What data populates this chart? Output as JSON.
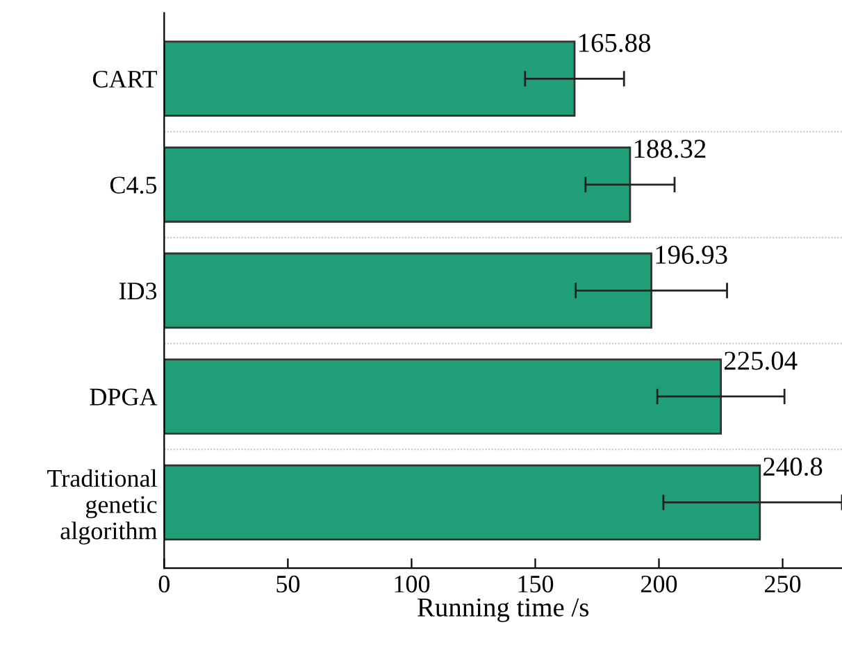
{
  "chart_data": {
    "type": "bar",
    "orientation": "horizontal",
    "xlabel": "Running time /s",
    "categories": [
      "CART",
      "C4.5",
      "ID3",
      "DPGA",
      "Traditional\ngenetic\nalgorithm"
    ],
    "values": [
      165.88,
      188.32,
      196.93,
      225.04,
      240.8
    ],
    "errors": [
      20,
      18,
      30.6,
      25.7,
      [
        201.8,
        274
      ]
    ],
    "color": "#1f9e78",
    "data_labels": true,
    "xlim": [
      0,
      274
    ],
    "xticks": [
      0,
      50,
      100,
      150,
      200,
      250
    ],
    "grid": "y"
  }
}
